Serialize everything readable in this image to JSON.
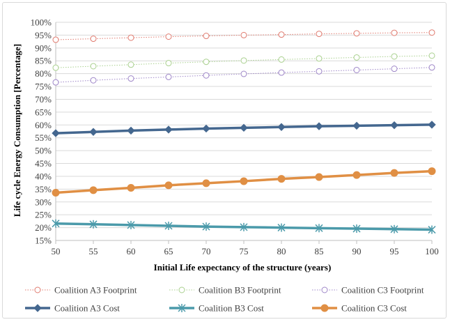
{
  "chart_data": {
    "type": "line",
    "xlabel": "Initial Life expectancy of the structure (years)",
    "ylabel": "Life cycle Energy Consumption [Percentage]",
    "x": [
      50,
      55,
      60,
      65,
      70,
      75,
      80,
      85,
      90,
      95,
      100
    ],
    "xlim": [
      50,
      100
    ],
    "ylim": [
      15,
      100
    ],
    "ytick_step": 5,
    "ytick_suffix": "%",
    "grid": "horizontal",
    "legend_position": "bottom",
    "series": [
      {
        "name": "Coalition A3 Footprint",
        "color": "#e07a6e",
        "style": "dotted",
        "marker": "circle-open",
        "values": [
          93.2,
          93.6,
          94.0,
          94.4,
          94.7,
          95.0,
          95.2,
          95.5,
          95.7,
          95.9,
          96.0
        ]
      },
      {
        "name": "Coalition B3 Footprint",
        "color": "#a9d08e",
        "style": "dotted",
        "marker": "circle-open",
        "values": [
          82.3,
          82.9,
          83.5,
          84.1,
          84.6,
          85.1,
          85.5,
          85.9,
          86.3,
          86.7,
          87.0
        ]
      },
      {
        "name": "Coalition C3 Footprint",
        "color": "#9e86c8",
        "style": "dotted",
        "marker": "circle-open",
        "values": [
          76.6,
          77.4,
          78.1,
          78.7,
          79.3,
          79.9,
          80.4,
          80.9,
          81.4,
          81.9,
          82.4
        ]
      },
      {
        "name": "Coalition A3 Cost",
        "color": "#44678f",
        "style": "solid",
        "marker": "diamond",
        "values": [
          56.8,
          57.3,
          57.8,
          58.2,
          58.6,
          58.9,
          59.2,
          59.5,
          59.7,
          59.9,
          60.1
        ]
      },
      {
        "name": "Coalition B3 Cost",
        "color": "#4b9aaa",
        "style": "solid",
        "marker": "asterisk",
        "values": [
          21.6,
          21.3,
          21.0,
          20.7,
          20.4,
          20.2,
          20.0,
          19.8,
          19.6,
          19.4,
          19.2
        ]
      },
      {
        "name": "Coalition C3 Cost",
        "color": "#e08f44",
        "style": "solid",
        "marker": "circle-filled",
        "values": [
          33.6,
          34.6,
          35.5,
          36.5,
          37.3,
          38.1,
          39.0,
          39.7,
          40.5,
          41.3,
          42.0
        ]
      }
    ]
  }
}
